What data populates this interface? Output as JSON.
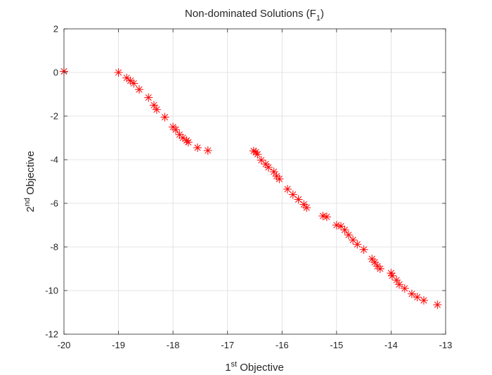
{
  "chart_data": {
    "type": "scatter",
    "title": "Non-dominated Solutions (F",
    "title_sub": "1",
    "title_close": ")",
    "xlabel_main": "1",
    "xlabel_sup": "st",
    "xlabel_rest": " Objective",
    "ylabel_main": "2",
    "ylabel_sup": "nd",
    "ylabel_rest": " Objective",
    "xlim": [
      -20,
      -13
    ],
    "ylim": [
      -12,
      2
    ],
    "xticks": [
      -20,
      -19,
      -18,
      -17,
      -16,
      -15,
      -14,
      -13
    ],
    "yticks": [
      -12,
      -10,
      -8,
      -6,
      -4,
      -2,
      0,
      2
    ],
    "xtick_labels": [
      "-20",
      "-19",
      "-18",
      "-17",
      "-16",
      "-15",
      "-14",
      "-13"
    ],
    "ytick_labels": [
      "-12",
      "-10",
      "-8",
      "-6",
      "-4",
      "-2",
      "0",
      "2"
    ],
    "grid": true,
    "marker": "asterisk",
    "marker_color": "#ff0000",
    "series": [
      {
        "x": [
          -20.0,
          -19.0,
          -18.85,
          -18.78,
          -18.72,
          -18.62,
          -18.45,
          -18.35,
          -18.3,
          -18.15,
          -18.0,
          -17.95,
          -17.88,
          -17.82,
          -17.75,
          -17.72,
          -17.55,
          -17.36,
          -16.52,
          -16.48,
          -16.45,
          -16.38,
          -16.3,
          -16.25,
          -16.15,
          -16.1,
          -16.05,
          -15.9,
          -15.8,
          -15.7,
          -15.6,
          -15.55,
          -15.25,
          -15.18,
          -15.0,
          -14.92,
          -14.85,
          -14.78,
          -14.7,
          -14.62,
          -14.5,
          -14.35,
          -14.3,
          -14.25,
          -14.2,
          -14.0,
          -13.98,
          -13.9,
          -13.85,
          -13.75,
          -13.62,
          -13.52,
          -13.4,
          -13.15
        ],
        "y": [
          0.05,
          0.0,
          -0.25,
          -0.38,
          -0.5,
          -0.78,
          -1.15,
          -1.5,
          -1.7,
          -2.05,
          -2.5,
          -2.62,
          -2.85,
          -3.0,
          -3.12,
          -3.2,
          -3.45,
          -3.58,
          -3.6,
          -3.65,
          -3.75,
          -4.02,
          -4.2,
          -4.35,
          -4.55,
          -4.75,
          -4.88,
          -5.35,
          -5.6,
          -5.82,
          -6.05,
          -6.2,
          -6.58,
          -6.62,
          -7.0,
          -7.05,
          -7.22,
          -7.45,
          -7.68,
          -7.88,
          -8.12,
          -8.55,
          -8.7,
          -8.88,
          -9.0,
          -9.2,
          -9.32,
          -9.52,
          -9.72,
          -9.9,
          -10.15,
          -10.3,
          -10.45,
          -10.65
        ]
      }
    ]
  }
}
